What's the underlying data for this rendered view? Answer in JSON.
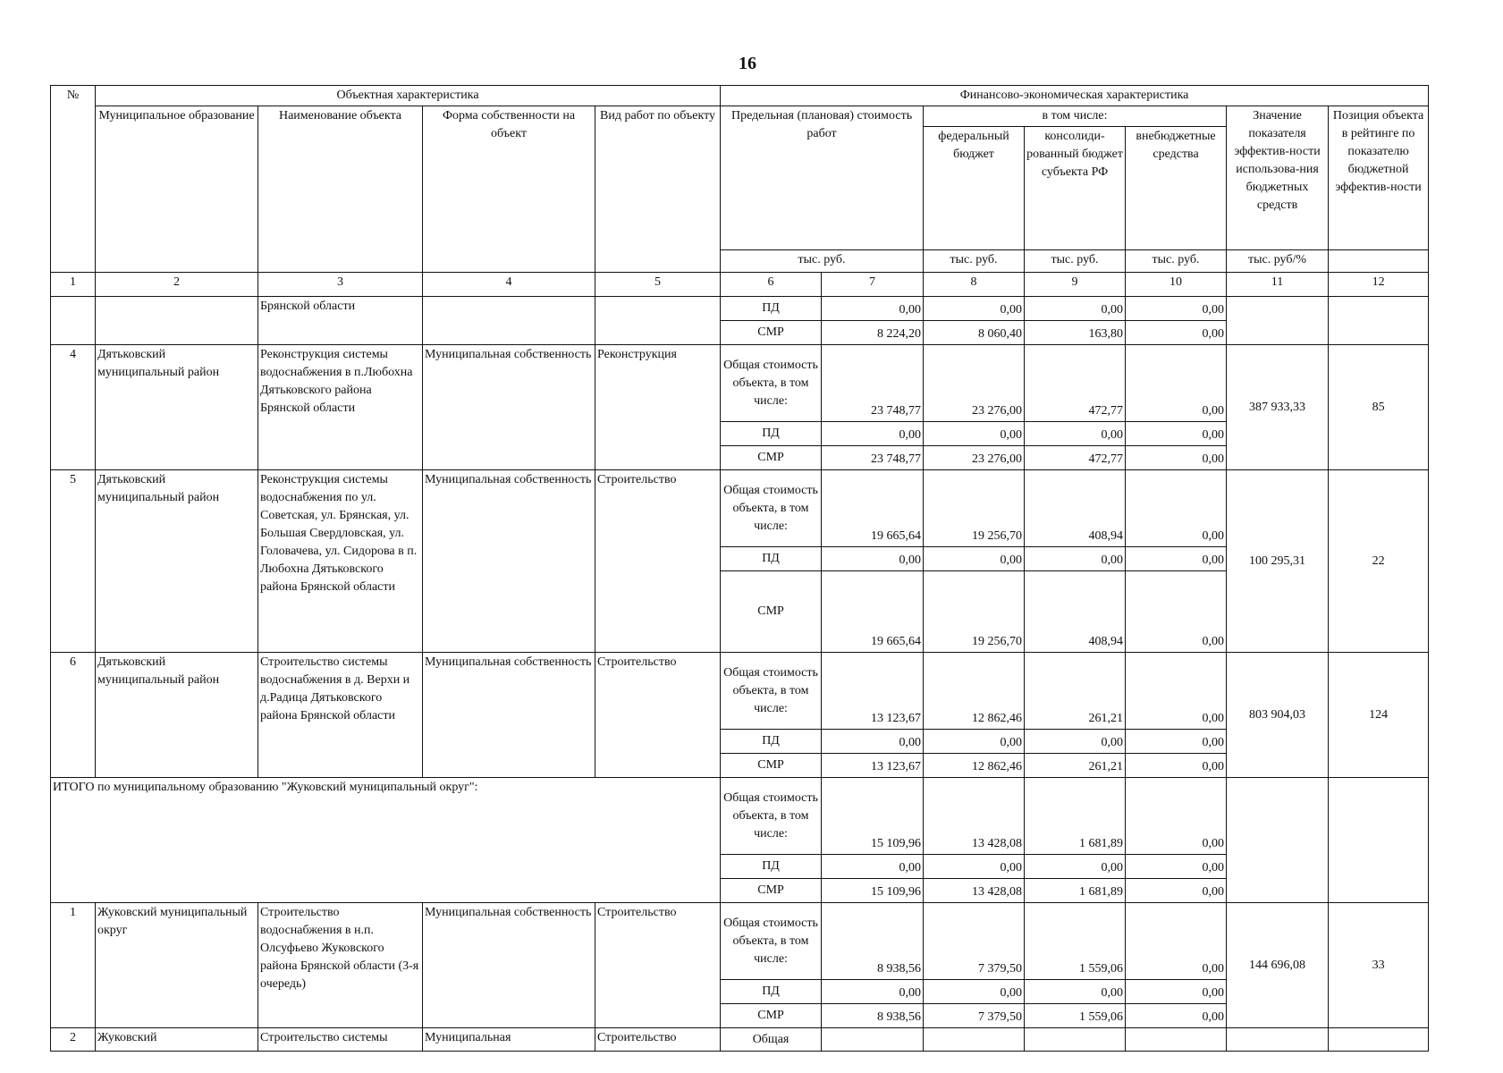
{
  "page_number": "16",
  "header": {
    "no": "№",
    "object_group": "Объектная характеристика",
    "finance_group": "Финансово-экономическая характеристика",
    "municipality": "Муниципальное образование",
    "object": "Наименование объекта",
    "ownership": "Форма собственности на объект",
    "work_type": "Вид работ по объекту",
    "cost": "Предельная (плановая) стоимость работ",
    "including": "в том числе:",
    "federal": "федеральный бюджет",
    "consolidated": "консолиди-рованный бюджет субъекта РФ",
    "extrabudget": "внебюджетные средства",
    "efficiency": "Значение показателя эффектив-ности использова-ния бюджетных средств",
    "rank": "Позиция объекта в рейтинге по показателю бюджетной эффектив-ности",
    "units": [
      "тыс. руб.",
      "тыс. руб.",
      "тыс. руб.",
      "тыс. руб.",
      "тыс. руб/%"
    ],
    "numbers": [
      "1",
      "2",
      "3",
      "4",
      "5",
      "6",
      "7",
      "8",
      "9",
      "10",
      "11",
      "12"
    ]
  },
  "blocks": [
    {
      "object": "Брянской области",
      "rows": [
        {
          "label": "ПД",
          "values": [
            "0,00",
            "0,00",
            "0,00",
            "0,00"
          ]
        },
        {
          "label": "СМР",
          "values": [
            "8 224,20",
            "8 060,40",
            "163,80",
            "0,00"
          ]
        }
      ]
    },
    {
      "number": "4",
      "municipality": "Дятьковский муниципальный район",
      "object": "Реконструкция системы водоснабжения в п.Любохна Дятьковского района Брянской области",
      "ownership": "Муниципальная собственность",
      "work_type": "Реконструкция",
      "efficiency": "387 933,33",
      "rank": "85",
      "rows": [
        {
          "label": "Общая стоимость объекта, в том числе:",
          "values": [
            "23 748,77",
            "23 276,00",
            "472,77",
            "0,00"
          ]
        },
        {
          "label": "ПД",
          "values": [
            "0,00",
            "0,00",
            "0,00",
            "0,00"
          ]
        },
        {
          "label": "СМР",
          "values": [
            "23 748,77",
            "23 276,00",
            "472,77",
            "0,00"
          ]
        }
      ]
    },
    {
      "number": "5",
      "municipality": "Дятьковский муниципальный район",
      "object": "Реконструкция системы водоснабжения по ул. Советская, ул. Брянская, ул. Большая Свердловская, ул. Головачева, ул. Сидорова в п. Любохна Дятьковского района Брянской области",
      "ownership": "Муниципальная собственность",
      "work_type": "Строительство",
      "efficiency": "100 295,31",
      "rank": "22",
      "rows": [
        {
          "label": "Общая стоимость объекта, в том числе:",
          "values": [
            "19 665,64",
            "19 256,70",
            "408,94",
            "0,00"
          ]
        },
        {
          "label": "ПД",
          "values": [
            "0,00",
            "0,00",
            "0,00",
            "0,00"
          ]
        },
        {
          "label": "СМР",
          "values": [
            "19 665,64",
            "19 256,70",
            "408,94",
            "0,00"
          ]
        }
      ]
    },
    {
      "number": "6",
      "municipality": "Дятьковский муниципальный район",
      "object": "Строительство системы водоснабжения в д. Верхи и д.Радица Дятьковского района Брянской области",
      "ownership": "Муниципальная собственность",
      "work_type": "Строительство",
      "efficiency": "803 904,03",
      "rank": "124",
      "rows": [
        {
          "label": "Общая стоимость объекта, в том числе:",
          "values": [
            "13 123,67",
            "12 862,46",
            "261,21",
            "0,00"
          ]
        },
        {
          "label": "ПД",
          "values": [
            "0,00",
            "0,00",
            "0,00",
            "0,00"
          ]
        },
        {
          "label": "СМР",
          "values": [
            "13 123,67",
            "12 862,46",
            "261,21",
            "0,00"
          ]
        }
      ]
    },
    {
      "total": "ИТОГО по муниципальному образованию \"Жуковский муниципальный округ\":",
      "rows": [
        {
          "label": "Общая стоимость объекта, в том числе:",
          "values": [
            "15 109,96",
            "13 428,08",
            "1 681,89",
            "0,00"
          ]
        },
        {
          "label": "ПД",
          "values": [
            "0,00",
            "0,00",
            "0,00",
            "0,00"
          ]
        },
        {
          "label": "СМР",
          "values": [
            "15 109,96",
            "13 428,08",
            "1 681,89",
            "0,00"
          ]
        }
      ]
    },
    {
      "number": "1",
      "municipality": "Жуковский муниципальный округ",
      "object": "Строительство водоснабжения в н.п. Олсуфьево Жуковского района Брянской области (3-я очередь)",
      "ownership": "Муниципальная собственность",
      "work_type": "Строительство",
      "efficiency": "144 696,08",
      "rank": "33",
      "rows": [
        {
          "label": "Общая стоимость объекта, в том числе:",
          "values": [
            "8 938,56",
            "7 379,50",
            "1 559,06",
            "0,00"
          ]
        },
        {
          "label": "ПД",
          "values": [
            "0,00",
            "0,00",
            "0,00",
            "0,00"
          ]
        },
        {
          "label": "СМР",
          "values": [
            "8 938,56",
            "7 379,50",
            "1 559,06",
            "0,00"
          ]
        }
      ]
    },
    {
      "number": "2",
      "municipality": "Жуковский",
      "object": "Строительство системы",
      "ownership": "Муниципальная",
      "work_type": "Строительство",
      "rows": [
        {
          "label": "Общая"
        }
      ]
    }
  ]
}
